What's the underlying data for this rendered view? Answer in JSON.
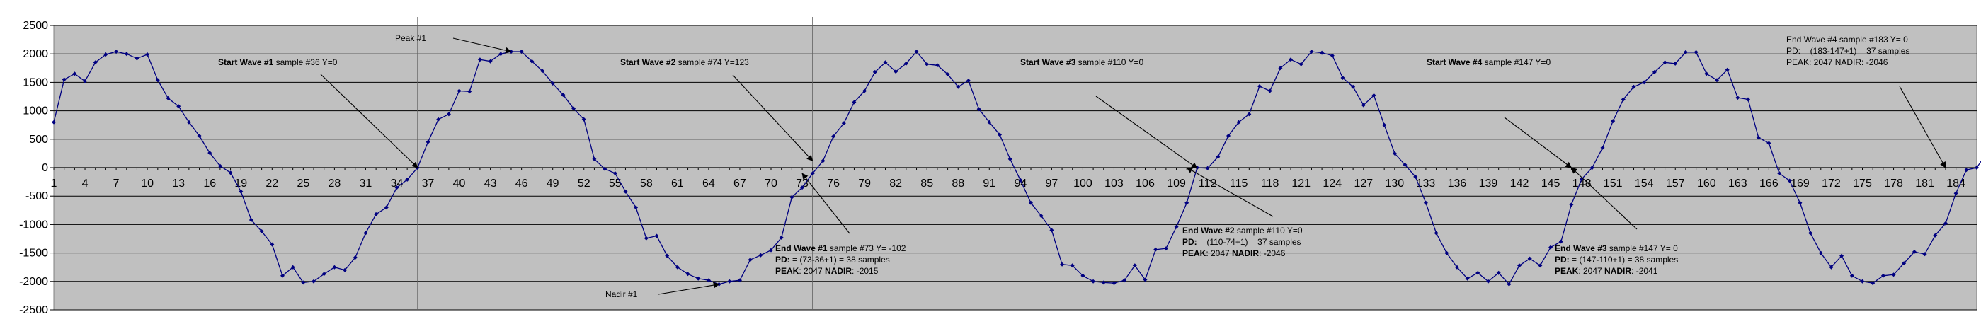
{
  "chart_data": {
    "type": "line",
    "title": "",
    "xlabel": "",
    "ylabel": "",
    "ylim": [
      -2500,
      2500
    ],
    "xlim": [
      1,
      186
    ],
    "grid": true,
    "legend": "none",
    "colors": {
      "plot_bg": "#c0c0c0",
      "line": "#000080",
      "grid": "#000000",
      "text": "#000000"
    },
    "y_ticks": [
      2500,
      2000,
      1500,
      1000,
      500,
      0,
      -500,
      -1000,
      -1500,
      -2000,
      -2500
    ],
    "x_ticks": [
      1,
      4,
      7,
      10,
      13,
      16,
      19,
      22,
      25,
      28,
      31,
      34,
      37,
      40,
      43,
      46,
      49,
      52,
      55,
      58,
      61,
      64,
      67,
      70,
      73,
      76,
      79,
      82,
      85,
      88,
      91,
      94,
      97,
      100,
      103,
      106,
      109,
      112,
      115,
      118,
      121,
      124,
      127,
      130,
      133,
      136,
      139,
      142,
      145,
      148,
      151,
      154,
      157,
      160,
      163,
      166,
      169,
      172,
      175,
      178,
      181,
      184
    ],
    "series": [
      {
        "values": [
          800,
          1550,
          1650,
          1520,
          1850,
          1990,
          2040,
          2000,
          1920,
          1990,
          1540,
          1220,
          1080,
          800,
          560,
          260,
          30,
          -90,
          -420,
          -920,
          -1120,
          -1350,
          -1900,
          -1750,
          -2020,
          -2000,
          -1870,
          -1750,
          -1800,
          -1580,
          -1150,
          -820,
          -700,
          -350,
          -210,
          0,
          450,
          850,
          940,
          1350,
          1340,
          1900,
          1870,
          2000,
          2040,
          2040,
          1870,
          1700,
          1480,
          1280,
          1040,
          850,
          150,
          -20,
          -100,
          -420,
          -700,
          -1240,
          -1200,
          -1550,
          -1750,
          -1870,
          -1950,
          -1980,
          -2050,
          -2000,
          -1980,
          -1620,
          -1540,
          -1450,
          -1230,
          -520,
          -350,
          -102,
          120,
          550,
          780,
          1150,
          1350,
          1680,
          1850,
          1690,
          1830,
          2040,
          1820,
          1800,
          1640,
          1420,
          1530,
          1030,
          800,
          580,
          150,
          -220,
          -620,
          -850,
          -1100,
          -1700,
          -1720,
          -1900,
          -2000,
          -2020,
          -2030,
          -1980,
          -1720,
          -1970,
          -1440,
          -1420,
          -1040,
          -620,
          0,
          -10,
          190,
          560,
          800,
          940,
          1430,
          1350,
          1750,
          1900,
          1820,
          2040,
          2020,
          1970,
          1580,
          1420,
          1100,
          1270,
          750,
          250,
          50,
          -160,
          -620,
          -1150,
          -1500,
          -1750,
          -1950,
          -1850,
          -2000,
          -1850,
          -2050,
          -1720,
          -1600,
          -1720,
          -1400,
          -1300,
          -650,
          -200,
          0,
          350,
          820,
          1200,
          1420,
          1500,
          1680,
          1850,
          1830,
          2030,
          2030,
          1650,
          1540,
          1720,
          1230,
          1200,
          530,
          430,
          -100,
          -230,
          -620,
          -1150,
          -1500,
          -1750,
          -1550,
          -1900,
          -2000,
          -2030,
          -1900,
          -1880,
          -1680,
          -1480,
          -1520,
          -1190,
          -980,
          -450,
          -40,
          0,
          270,
          920,
          1050
        ]
      }
    ],
    "annotations": [
      {
        "id": "start-wave-1",
        "lines": [
          {
            "bold": "Start Wave #1",
            "rest": " sample #36  Y=0"
          }
        ],
        "arrow_to": [
          36,
          0
        ]
      },
      {
        "id": "peak-1",
        "lines": [
          {
            "bold": "",
            "rest": "Peak #1"
          }
        ],
        "arrow_to": [
          45,
          2040
        ]
      },
      {
        "id": "start-wave-2",
        "lines": [
          {
            "bold": "Start Wave #2",
            "rest": " sample #74  Y=123"
          }
        ],
        "arrow_to": [
          74,
          120
        ]
      },
      {
        "id": "end-wave-1",
        "lines": [
          {
            "bold": "End Wave #1",
            "rest": " sample #73  Y= -102"
          },
          {
            "bold": "PD:",
            "rest": "  = (73-36+1) = 38 samples"
          },
          {
            "bold": "PEAK",
            "rest": ": 2047  ",
            "bold2": "NADIR",
            "rest2": ": -2015"
          }
        ],
        "arrow_to": [
          73,
          -102
        ]
      },
      {
        "id": "nadir-1",
        "lines": [
          {
            "bold": "",
            "rest": "Nadir #1"
          }
        ],
        "arrow_to": [
          65,
          -2050
        ]
      },
      {
        "id": "start-wave-3",
        "lines": [
          {
            "bold": "Start Wave #3",
            "rest": " sample #110  Y=0"
          }
        ],
        "arrow_to": [
          111,
          -10
        ]
      },
      {
        "id": "end-wave-2",
        "lines": [
          {
            "bold": "End Wave #2",
            "rest": " sample #110  Y=0"
          },
          {
            "bold": "PD:",
            "rest": "  = (110-74+1) = 37 samples"
          },
          {
            "bold": "PEAK",
            "rest": ": 2047  ",
            "bold2": "NADIR",
            "rest2": ": -2046"
          }
        ],
        "arrow_to": [
          110,
          0
        ]
      },
      {
        "id": "start-wave-4",
        "lines": [
          {
            "bold": "Start Wave #4",
            "rest": " sample #147  Y=0"
          }
        ],
        "arrow_to": [
          147,
          0
        ]
      },
      {
        "id": "end-wave-3",
        "lines": [
          {
            "bold": "End Wave #3",
            "rest": " sample #147  Y= 0"
          },
          {
            "bold": "PD:",
            "rest": "  = (147-110+1) = 38 samples"
          },
          {
            "bold": "PEAK",
            "rest": ": 2047  ",
            "bold2": "NADIR",
            "rest2": ": -2041"
          }
        ],
        "arrow_to": [
          147,
          0
        ]
      },
      {
        "id": "end-wave-4",
        "lines": [
          {
            "bold": "",
            "rest": "End Wave #4 sample #183  Y= 0"
          },
          {
            "bold": "",
            "rest": "PD:  = (183-147+1) = 37 samples"
          },
          {
            "bold": "",
            "rest": "PEAK: 2047   NADIR: -2046"
          }
        ],
        "arrow_to": [
          183,
          0
        ]
      }
    ],
    "markers": [
      {
        "id": "wave-1-start-marker",
        "x": 36
      },
      {
        "id": "wave-2-start-marker",
        "x": 74
      }
    ]
  }
}
